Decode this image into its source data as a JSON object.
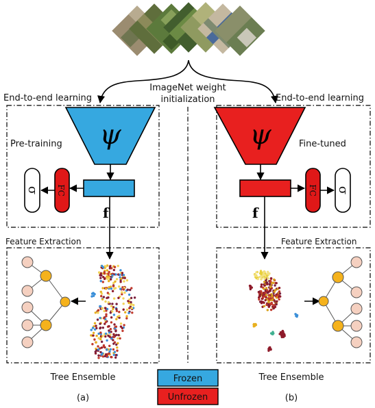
{
  "top": {
    "caption_line1": "ImageNet weight",
    "caption_line2": "initialization"
  },
  "left": {
    "section_label": "End-to-end learning",
    "mode_label": "Pre-training",
    "encoder_symbol": "ψ",
    "fc_label": "FC",
    "sigma_label": "σ",
    "feature_symbol": "f",
    "feature_extraction_label": "Feature Extraction",
    "ensemble_label": "Tree Ensemble",
    "panel_label": "(a)",
    "encoder_color": "#36a8e0"
  },
  "right": {
    "section_label": "End-to-end learning",
    "mode_label": "Fine-tuned",
    "encoder_symbol": "ψ",
    "fc_label": "FC",
    "sigma_label": "σ",
    "feature_symbol": "f",
    "feature_extraction_label": "Feature Extraction",
    "ensemble_label": "Tree Ensemble",
    "panel_label": "(b)",
    "encoder_color": "#e8201f"
  },
  "legend": {
    "frozen_label": "Frozen",
    "unfrozen_label": "Unfrozen",
    "frozen_color": "#36a8e0",
    "unfrozen_color": "#e8201f"
  },
  "colors": {
    "fc_red": "#e01818",
    "tree_leaf": "#f5d0c0",
    "tree_node": "#f5b21c"
  }
}
